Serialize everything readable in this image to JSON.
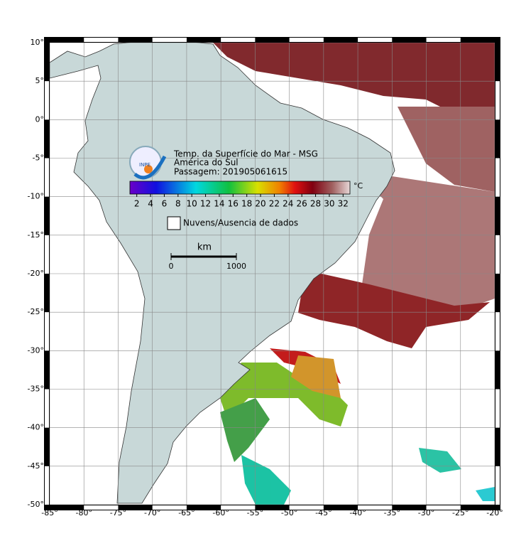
{
  "header": {
    "title": "Temp. da Superfície do Mar - MSG",
    "region": "América do Sul",
    "pass": "Passagem: 201905061615"
  },
  "colorbar": {
    "unit": "°C",
    "range": [
      1,
      33
    ],
    "ticks": [
      2,
      4,
      6,
      8,
      10,
      12,
      14,
      16,
      18,
      20,
      22,
      24,
      26,
      28,
      30,
      32
    ]
  },
  "legend": {
    "clouds": "Nuvens/Ausencia de dados"
  },
  "scale_bar": {
    "unit": "km",
    "start": 0,
    "end": 1000
  },
  "axes": {
    "lon_lim": [
      -85,
      -20
    ],
    "lat_lim": [
      -50,
      10
    ],
    "lon_ticks": [
      {
        "value": -85,
        "label": "-85°"
      },
      {
        "value": -80,
        "label": "-80°"
      },
      {
        "value": -75,
        "label": "-75°"
      },
      {
        "value": -70,
        "label": "-70°"
      },
      {
        "value": -65,
        "label": "-65°"
      },
      {
        "value": -60,
        "label": "-60°"
      },
      {
        "value": -55,
        "label": "-55°"
      },
      {
        "value": -50,
        "label": "-50°"
      },
      {
        "value": -45,
        "label": "-45°"
      },
      {
        "value": -40,
        "label": "-40°"
      },
      {
        "value": -35,
        "label": "-35°"
      },
      {
        "value": -30,
        "label": "-30°"
      },
      {
        "value": -25,
        "label": "-25°"
      },
      {
        "value": -20,
        "label": "-20°"
      }
    ],
    "lat_ticks": [
      {
        "value": 10,
        "label": "10°"
      },
      {
        "value": 5,
        "label": "5°"
      },
      {
        "value": 0,
        "label": "0°"
      },
      {
        "value": -5,
        "label": "-5°"
      },
      {
        "value": -10,
        "label": "-10°"
      },
      {
        "value": -15,
        "label": "-15°"
      },
      {
        "value": -20,
        "label": "-20°"
      },
      {
        "value": -25,
        "label": "-25°"
      },
      {
        "value": -30,
        "label": "-30°"
      },
      {
        "value": -35,
        "label": "-35°"
      },
      {
        "value": -40,
        "label": "-40°"
      },
      {
        "value": -45,
        "label": "-45°"
      },
      {
        "value": -50,
        "label": "-50°"
      }
    ]
  }
}
